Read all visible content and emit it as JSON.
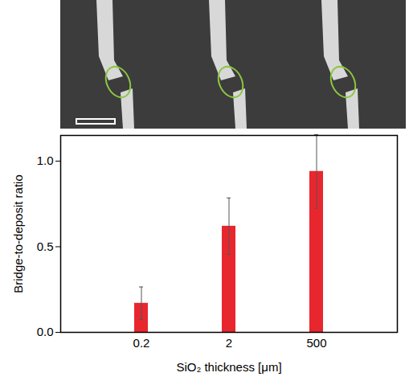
{
  "chart_data": {
    "type": "bar",
    "categories": [
      "0.2",
      "2",
      "500"
    ],
    "values": [
      0.17,
      0.62,
      0.94
    ],
    "errors": [
      0.095,
      0.165,
      0.215
    ],
    "color": "#e8262e",
    "xlabel": "SiO₂ thickness [μm]",
    "ylabel": "Bridge-to-deposit ratio",
    "ylim": [
      0,
      1.15
    ],
    "yticks": [
      {
        "value": 0,
        "label": "0.0"
      },
      {
        "value": 0.5,
        "label": "0.5"
      },
      {
        "value": 1,
        "label": "1.0"
      }
    ],
    "grid": false
  }
}
